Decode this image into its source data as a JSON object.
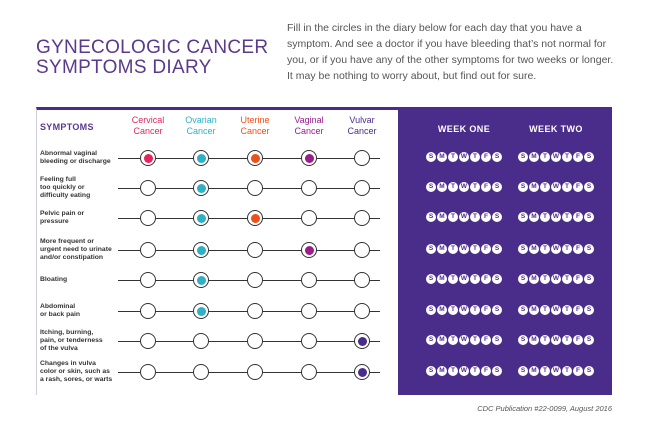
{
  "title": {
    "line1": "GYNECOLOGIC CANCER",
    "line2": "SYMPTOMS DIARY"
  },
  "intro": "Fill in the circles in the diary below for each day that you have a symptom. And see a doctor if you have bleeding that’s not normal for you, or if you have any of the other symptoms for two weeks or longer. It may be nothing to worry about, but find out for sure.",
  "headers": {
    "symptoms": "SYMPTOMS",
    "cancers": [
      {
        "line1": "Cervical",
        "line2": "Cancer",
        "color": "#e2255d"
      },
      {
        "line1": "Ovarian",
        "line2": "Cancer",
        "color": "#2fb0c4"
      },
      {
        "line1": "Uterine",
        "line2": "Cancer",
        "color": "#ef4f1a"
      },
      {
        "line1": "Vaginal",
        "line2": "Cancer",
        "color": "#9c1c8c"
      },
      {
        "line1": "Vulvar",
        "line2": "Cancer",
        "color": "#4a2c8a"
      }
    ],
    "weeks": [
      "WEEK ONE",
      "WEEK TWO"
    ]
  },
  "days": [
    "S",
    "M",
    "T",
    "W",
    "T",
    "F",
    "S"
  ],
  "rows": [
    {
      "label": [
        "Abnormal vaginal",
        "bleeding or discharge"
      ],
      "marks": [
        true,
        true,
        true,
        true,
        false
      ]
    },
    {
      "label": [
        "Feeling full",
        "too quickly or",
        "difficulty eating"
      ],
      "marks": [
        false,
        true,
        false,
        false,
        false
      ]
    },
    {
      "label": [
        "Pelvic pain or",
        "pressure"
      ],
      "marks": [
        false,
        true,
        true,
        false,
        false
      ]
    },
    {
      "label": [
        "More frequent or",
        "urgent need to urinate",
        "and/or constipation"
      ],
      "marks": [
        false,
        true,
        false,
        true,
        false
      ]
    },
    {
      "label": [
        "Bloating"
      ],
      "marks": [
        false,
        true,
        false,
        false,
        false
      ]
    },
    {
      "label": [
        "Abdominal",
        "or back pain"
      ],
      "marks": [
        false,
        true,
        false,
        false,
        false
      ]
    },
    {
      "label": [
        "Itching, burning,",
        "pain, or tenderness",
        "of the vulva"
      ],
      "marks": [
        false,
        false,
        false,
        false,
        true
      ]
    },
    {
      "label": [
        "Changes in vulva",
        "color or skin, such as",
        "a rash, sores, or warts"
      ],
      "marks": [
        false,
        false,
        false,
        false,
        true
      ]
    }
  ],
  "footer": "CDC Publication #22-0099, August 2016"
}
